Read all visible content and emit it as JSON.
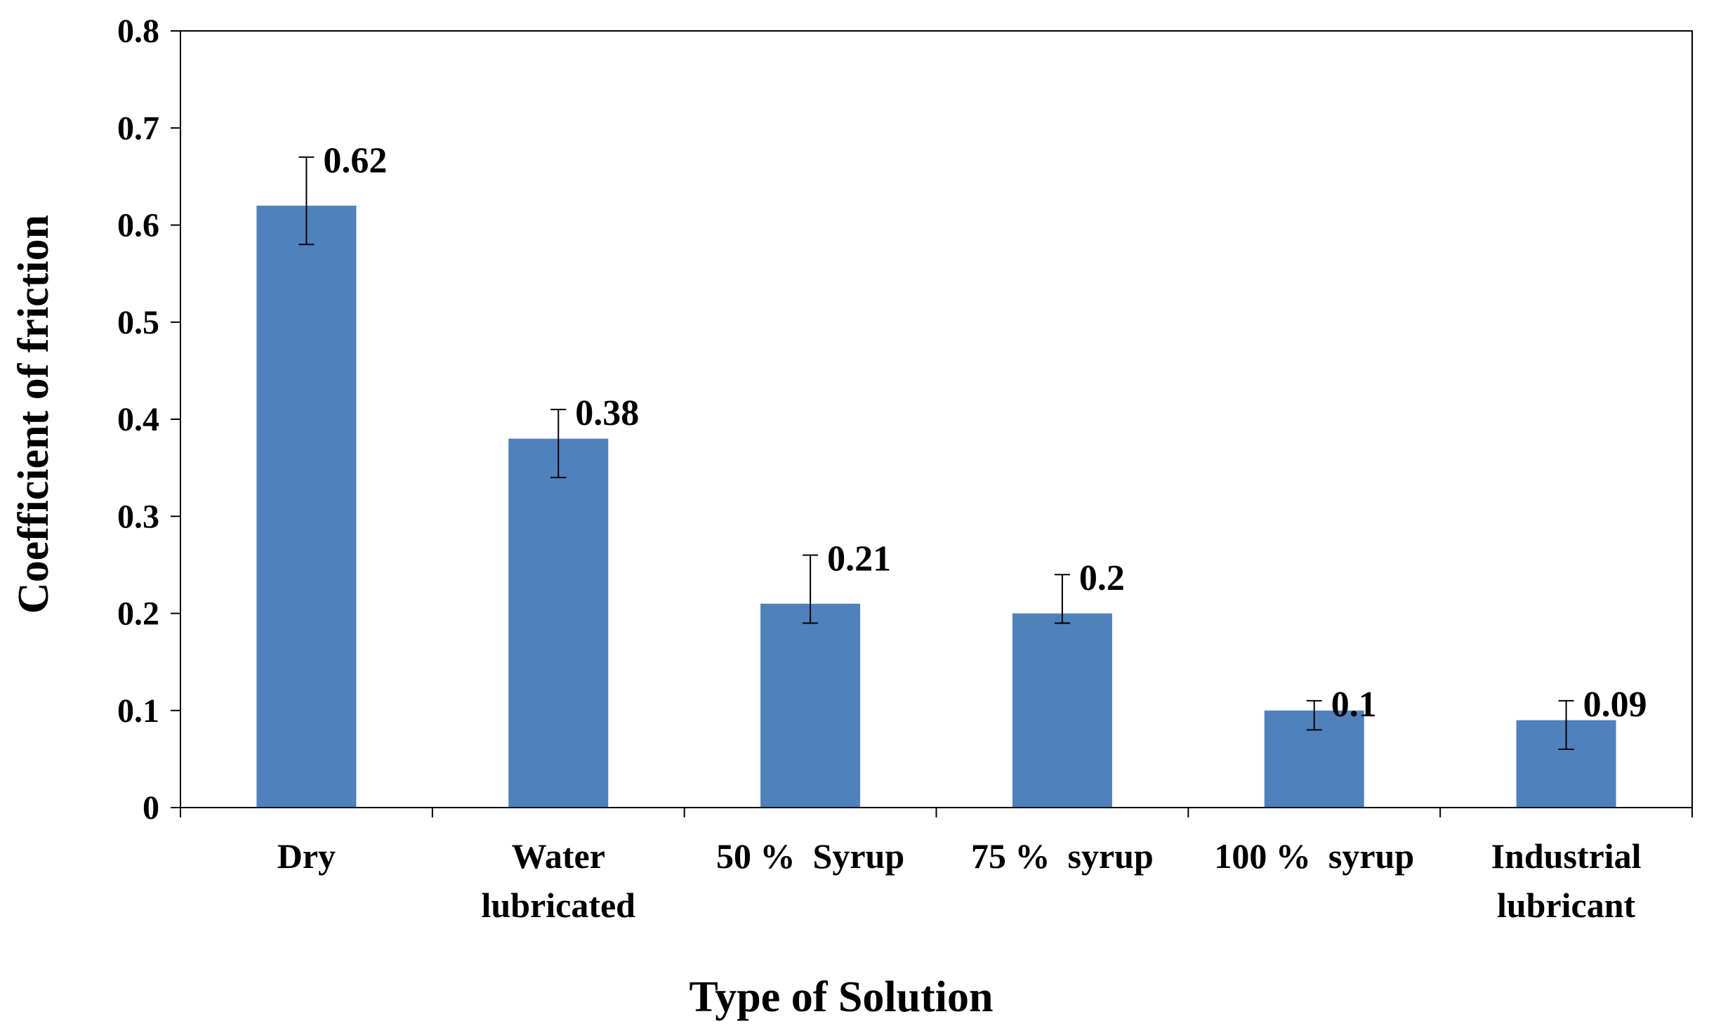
{
  "chart_data": {
    "type": "bar",
    "title": "",
    "xlabel": "Type of Solution",
    "ylabel": "Coefficient of friction",
    "ylim": [
      0,
      0.8
    ],
    "yticks": [
      0,
      0.1,
      0.2,
      0.3,
      0.4,
      0.5,
      0.6,
      0.7,
      0.8
    ],
    "ytick_labels": [
      "0",
      "0.1",
      "0.2",
      "0.3",
      "0.4",
      "0.5",
      "0.6",
      "0.7",
      "0.8"
    ],
    "categories": [
      [
        "Dry"
      ],
      [
        "Water",
        "lubricated"
      ],
      [
        "50 %  Syrup"
      ],
      [
        "75 %  syrup"
      ],
      [
        "100 %  syrup"
      ],
      [
        "Industrial",
        "lubricant"
      ]
    ],
    "values": [
      0.62,
      0.38,
      0.21,
      0.2,
      0.1,
      0.09
    ],
    "value_labels": [
      "0.62",
      "0.38",
      "0.21",
      "0.2",
      "0.1",
      "0.09"
    ],
    "error_low": [
      0.58,
      0.34,
      0.19,
      0.19,
      0.08,
      0.06
    ],
    "error_high": [
      0.67,
      0.41,
      0.26,
      0.24,
      0.11,
      0.11
    ],
    "bar_color": "#4F81BD",
    "grid": false,
    "legend": "none"
  }
}
